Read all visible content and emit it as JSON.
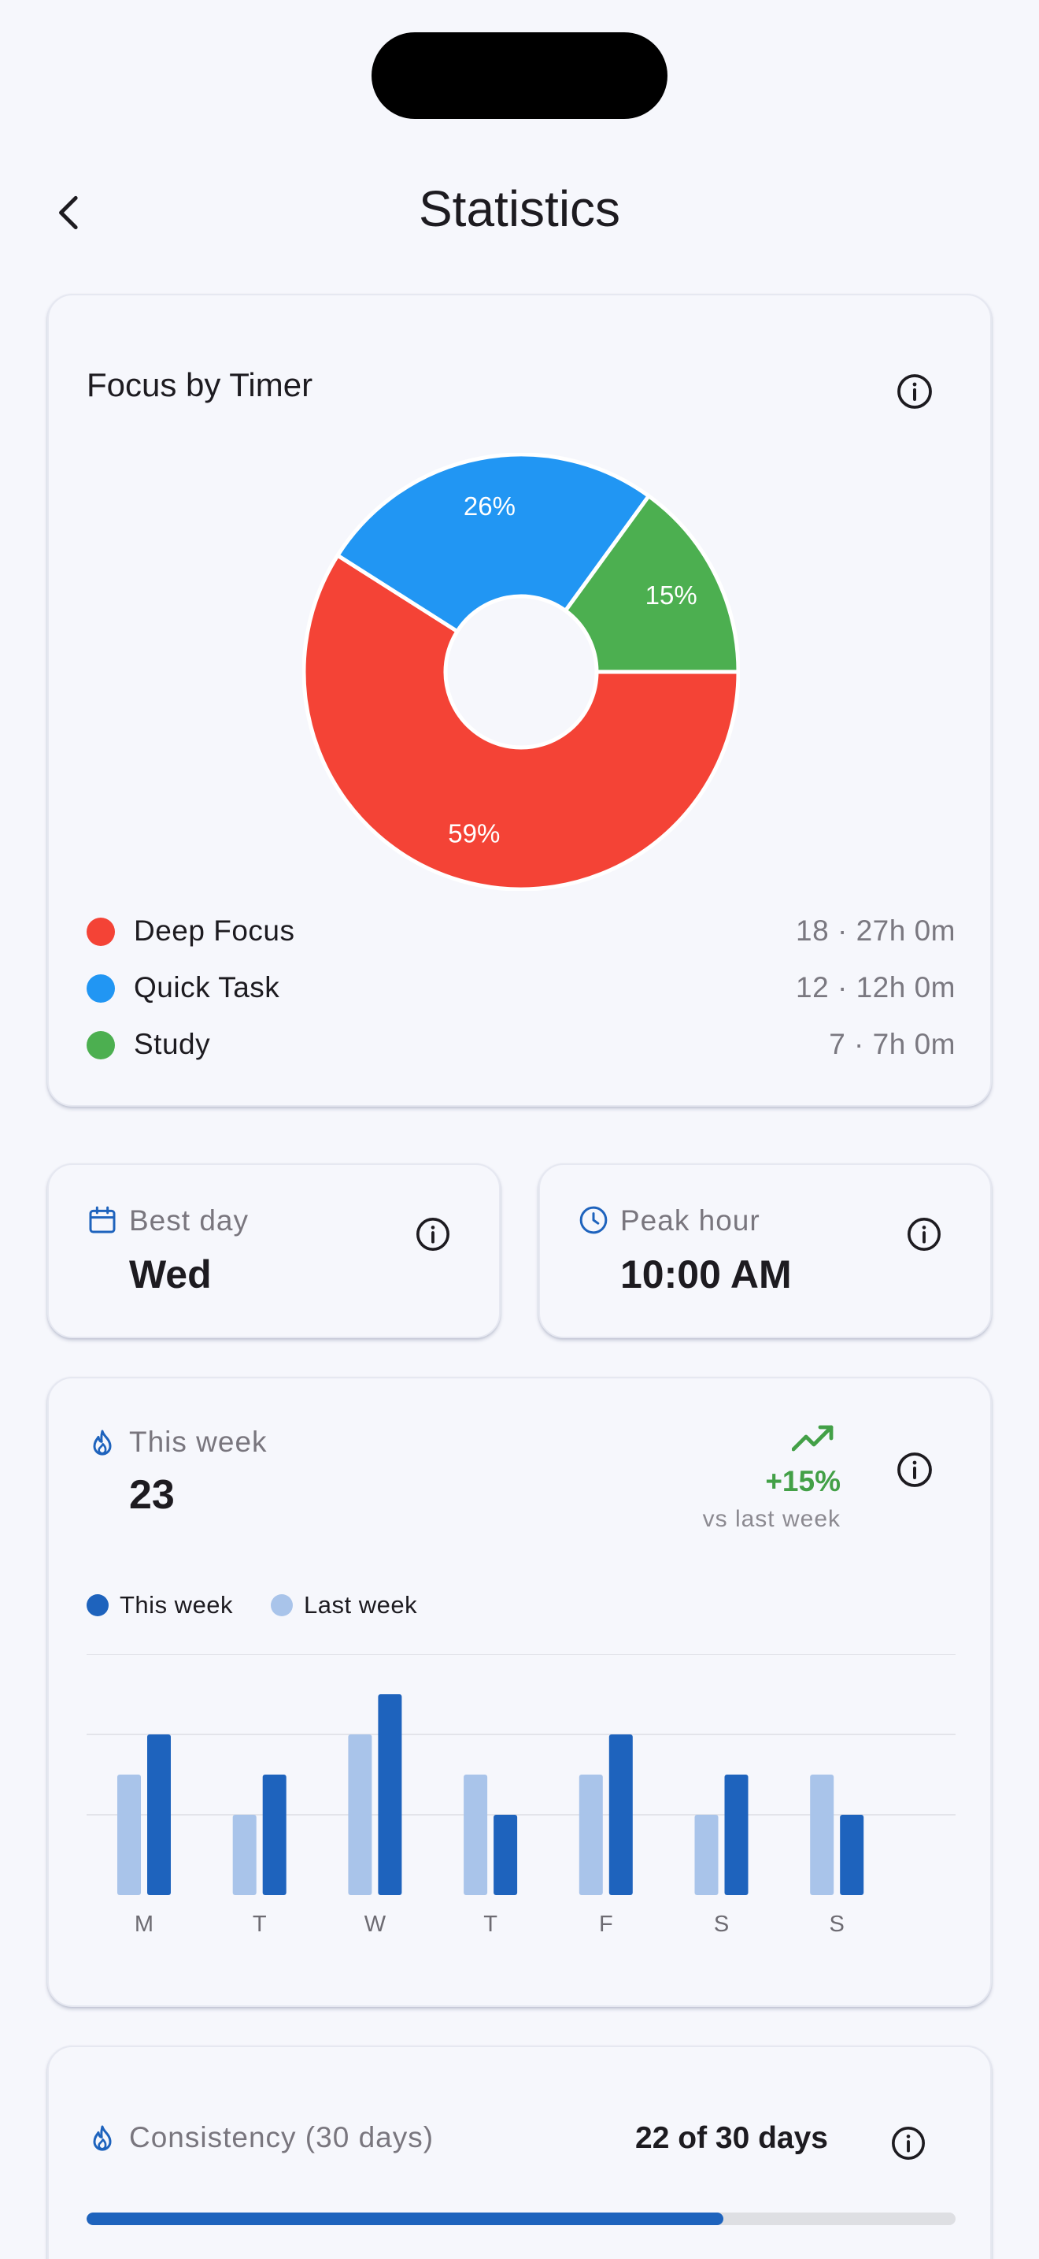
{
  "header": {
    "title": "Statistics"
  },
  "colors": {
    "deep_focus": "#f44336",
    "quick_task": "#2196f3",
    "study": "#4caf50",
    "this_week": "#1e63bd",
    "last_week": "#a9c4ea",
    "trend_up": "#43a047"
  },
  "focus_card": {
    "title": "Focus by Timer",
    "legend": [
      {
        "label": "Deep Focus",
        "value": "18 · 27h 0m"
      },
      {
        "label": "Quick Task",
        "value": "12 · 12h 0m"
      },
      {
        "label": "Study",
        "value": "7 · 7h 0m"
      }
    ]
  },
  "best_day": {
    "label": "Best day",
    "value": "Wed",
    "icon": "calendar-icon"
  },
  "peak_hour": {
    "label": "Peak hour",
    "value": "10:00 AM",
    "icon": "clock-icon"
  },
  "week_card": {
    "label": "This week",
    "value": "23",
    "trend": "+15%",
    "trend_sub": "vs last week",
    "legend_this": "This week",
    "legend_last": "Last week"
  },
  "consistency": {
    "label": "Consistency (30 days)",
    "value": "22 of 30 days",
    "progress": 0.733
  },
  "chart_data": [
    {
      "type": "pie",
      "title": "Focus by Timer",
      "donut": true,
      "categories": [
        "Deep Focus",
        "Quick Task",
        "Study"
      ],
      "values": [
        59,
        26,
        15
      ],
      "labels": [
        "59%",
        "26%",
        "15%"
      ]
    },
    {
      "type": "bar",
      "categories": [
        "M",
        "T",
        "W",
        "T",
        "F",
        "S",
        "S"
      ],
      "series": [
        {
          "name": "Last week",
          "values": [
            3,
            2,
            4,
            3,
            3,
            2,
            3
          ]
        },
        {
          "name": "This week",
          "values": [
            4,
            3,
            5,
            2,
            4,
            3,
            2
          ]
        }
      ],
      "ylim": [
        0,
        6
      ],
      "grid": true
    }
  ]
}
